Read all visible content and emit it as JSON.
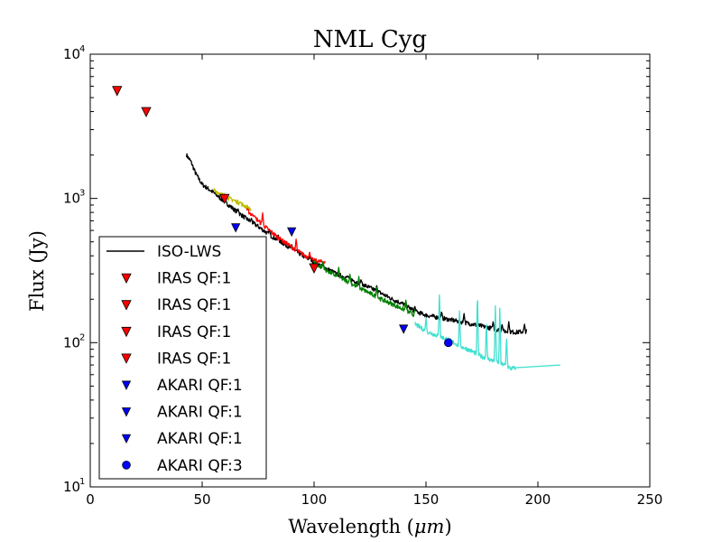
{
  "chart_data": {
    "type": "scatter",
    "title": "NML Cyg",
    "xlabel": "Wavelength (μm)",
    "xlabel_prefix": "Wavelength (",
    "xlabel_unit": "μm",
    "xlabel_suffix": ")",
    "ylabel": "Flux (Jy)",
    "xlim": [
      0,
      250
    ],
    "ylim": [
      10,
      10000
    ],
    "yscale": "log",
    "grid": false,
    "legend_position": "lower-left",
    "x_ticks": [
      {
        "value": 0,
        "label": "0"
      },
      {
        "value": 50,
        "label": "50"
      },
      {
        "value": 100,
        "label": "100"
      },
      {
        "value": 150,
        "label": "150"
      },
      {
        "value": 200,
        "label": "200"
      },
      {
        "value": 250,
        "label": "250"
      }
    ],
    "y_ticks": [
      {
        "value": 10,
        "base": "10",
        "exp": "1"
      },
      {
        "value": 100,
        "base": "10",
        "exp": "2"
      },
      {
        "value": 1000,
        "base": "10",
        "exp": "3"
      },
      {
        "value": 10000,
        "base": "10",
        "exp": "4"
      }
    ],
    "colors": {
      "iso": "#000000",
      "iras": "#ff0000",
      "akari": "#0000ff",
      "seg_yellow": "#bfbf00",
      "seg_red": "#ff0000",
      "seg_green": "#008000",
      "seg_cyan": "#40e0d0"
    },
    "series": [
      {
        "name": "ISO-LWS",
        "kind": "line",
        "color": "#000000",
        "points": [
          [
            43,
            2000
          ],
          [
            45,
            1800
          ],
          [
            47,
            1500
          ],
          [
            50,
            1250
          ],
          [
            55,
            1100
          ],
          [
            60,
            950
          ],
          [
            65,
            820
          ],
          [
            70,
            720
          ],
          [
            75,
            640
          ],
          [
            80,
            560
          ],
          [
            85,
            500
          ],
          [
            90,
            450
          ],
          [
            95,
            400
          ],
          [
            100,
            360
          ],
          [
            105,
            330
          ],
          [
            110,
            300
          ],
          [
            115,
            280
          ],
          [
            120,
            260
          ],
          [
            125,
            240
          ],
          [
            130,
            220
          ],
          [
            135,
            200
          ],
          [
            140,
            185
          ],
          [
            145,
            165
          ],
          [
            150,
            155
          ],
          [
            155,
            150
          ],
          [
            160,
            145
          ],
          [
            165,
            140
          ],
          [
            170,
            135
          ],
          [
            175,
            130
          ],
          [
            180,
            125
          ],
          [
            185,
            120
          ],
          [
            190,
            118
          ],
          [
            195,
            120
          ]
        ],
        "spikes": [
          [
            60,
            1100
          ],
          [
            66,
            850
          ],
          [
            72,
            730
          ],
          [
            80,
            620
          ],
          [
            84,
            560
          ],
          [
            90,
            480
          ],
          [
            92,
            410
          ],
          [
            98,
            400
          ],
          [
            104,
            350
          ],
          [
            115,
            290
          ],
          [
            121,
            275
          ],
          [
            128,
            250
          ],
          [
            145,
            180
          ],
          [
            157,
            165
          ],
          [
            167,
            160
          ],
          [
            180,
            140
          ],
          [
            184,
            135
          ],
          [
            187,
            140
          ],
          [
            194,
            135
          ],
          [
            196,
            140
          ]
        ]
      },
      {
        "name": "IRAS QF:1",
        "kind": "marker",
        "marker": "triangle-down",
        "color": "#ff0000",
        "points": [
          [
            12,
            5600
          ],
          [
            25,
            4000
          ],
          [
            60,
            1000
          ],
          [
            100,
            330
          ]
        ]
      },
      {
        "name": "AKARI QF:1",
        "kind": "marker",
        "marker": "triangle-down",
        "color": "#0000ff",
        "points": [
          [
            65,
            630
          ],
          [
            90,
            590
          ],
          [
            140,
            125
          ]
        ]
      },
      {
        "name": "AKARI QF:3",
        "kind": "marker",
        "marker": "circle",
        "color": "#0000ff",
        "points": [
          [
            160,
            100
          ]
        ]
      },
      {
        "name": "segment-yellow",
        "kind": "line",
        "color": "#bfbf00",
        "points": [
          [
            55,
            1150
          ],
          [
            58,
            1080
          ],
          [
            62,
            1000
          ],
          [
            66,
            940
          ],
          [
            70,
            870
          ],
          [
            72,
            830
          ]
        ],
        "spikes": [
          [
            60,
            1080
          ],
          [
            64,
            980
          ],
          [
            67,
            950
          ]
        ]
      },
      {
        "name": "segment-red",
        "kind": "line",
        "color": "#ff0000",
        "points": [
          [
            70,
            830
          ],
          [
            75,
            700
          ],
          [
            80,
            600
          ],
          [
            85,
            520
          ],
          [
            90,
            460
          ],
          [
            95,
            410
          ],
          [
            100,
            370
          ],
          [
            105,
            360
          ]
        ],
        "spikes": [
          [
            73,
            760
          ],
          [
            75,
            690
          ],
          [
            77,
            800
          ],
          [
            85,
            510
          ],
          [
            88,
            470
          ],
          [
            92,
            530
          ],
          [
            98,
            430
          ]
        ]
      },
      {
        "name": "segment-green",
        "kind": "line",
        "color": "#008000",
        "points": [
          [
            100,
            360
          ],
          [
            105,
            320
          ],
          [
            110,
            290
          ],
          [
            115,
            265
          ],
          [
            120,
            240
          ],
          [
            125,
            220
          ],
          [
            130,
            200
          ],
          [
            135,
            185
          ],
          [
            140,
            170
          ],
          [
            145,
            155
          ]
        ],
        "spikes": [
          [
            104,
            370
          ],
          [
            111,
            335
          ],
          [
            116,
            300
          ],
          [
            120,
            290
          ],
          [
            128,
            250
          ],
          [
            141,
            200
          ],
          [
            145,
            170
          ]
        ]
      },
      {
        "name": "segment-cyan",
        "kind": "line",
        "color": "#40e0d0",
        "points": [
          [
            145,
            135
          ],
          [
            150,
            120
          ],
          [
            155,
            112
          ],
          [
            160,
            105
          ],
          [
            165,
            95
          ],
          [
            170,
            88
          ],
          [
            175,
            80
          ],
          [
            180,
            75
          ],
          [
            185,
            70
          ],
          [
            188,
            66
          ],
          [
            190,
            67
          ],
          [
            210,
            70
          ]
        ],
        "spikes": [
          [
            150,
            150
          ],
          [
            156,
            220
          ],
          [
            165,
            170
          ],
          [
            173,
            230
          ],
          [
            177,
            140
          ],
          [
            181,
            180
          ],
          [
            183,
            180
          ],
          [
            186,
            110
          ]
        ]
      }
    ],
    "legend": [
      {
        "label": "ISO-LWS",
        "symbol": "line",
        "color": "#000000"
      },
      {
        "label": "IRAS QF:1",
        "symbol": "triangle-down",
        "color": "#ff0000"
      },
      {
        "label": "IRAS QF:1",
        "symbol": "triangle-down",
        "color": "#ff0000"
      },
      {
        "label": "IRAS QF:1",
        "symbol": "triangle-down",
        "color": "#ff0000"
      },
      {
        "label": "IRAS QF:1",
        "symbol": "triangle-down",
        "color": "#ff0000"
      },
      {
        "label": "AKARI QF:1",
        "symbol": "triangle-down-small",
        "color": "#0000ff"
      },
      {
        "label": "AKARI QF:1",
        "symbol": "triangle-down-small",
        "color": "#0000ff"
      },
      {
        "label": "AKARI QF:1",
        "symbol": "triangle-down-small",
        "color": "#0000ff"
      },
      {
        "label": "AKARI QF:3",
        "symbol": "circle",
        "color": "#0000ff"
      }
    ]
  }
}
